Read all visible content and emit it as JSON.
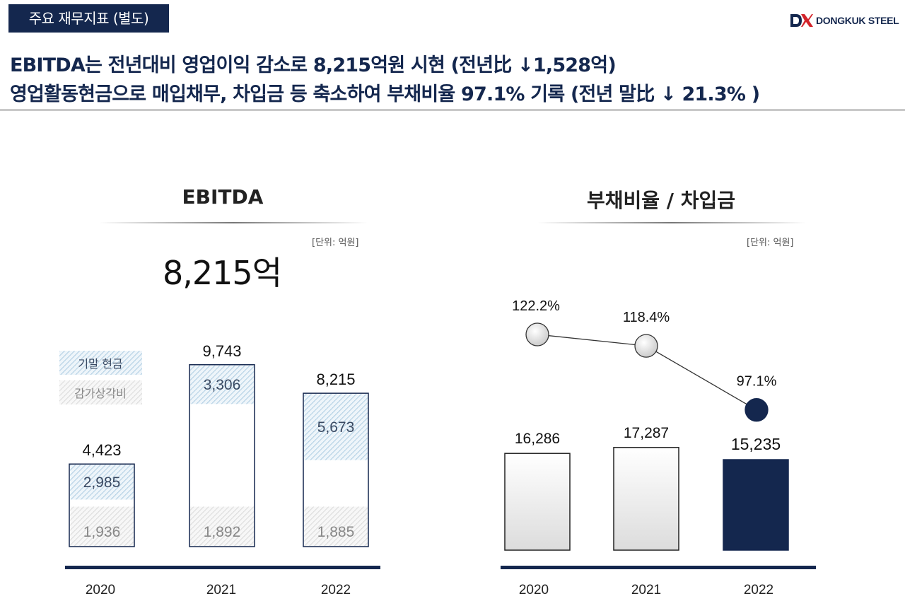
{
  "header": {
    "tag": "주요 재무지표 (별도)",
    "logo_text": "DONGKUK STEEL",
    "headline_1": "EBITDA는 전년대비 영업이익 감소로 8,215억원 시현 (전년比 ↓1,528억)",
    "headline_2": "영업활동현금으로 매입채무, 차입금 등 축소하여  부채비율 97.1% 기록 (전년 말比 ↓ 21.3% )"
  },
  "colors": {
    "navy": "#14274e",
    "cash_hatch": "#9ec3dc",
    "depreciation_hatch": "#c8c8c8"
  },
  "left": {
    "title": "EBITDA",
    "unit": "[단위: 억원]",
    "big_value": "8,215억"
  },
  "right": {
    "title": "부채비율 / 차입금",
    "unit": "[단위: 억원]"
  },
  "chart_data": [
    {
      "type": "bar",
      "title": "EBITDA",
      "categories": [
        "2020",
        "2021",
        "2022"
      ],
      "totals": [
        4423,
        9743,
        8215
      ],
      "total_labels": [
        "4,423",
        "9,743",
        "8,215"
      ],
      "series": [
        {
          "name": "기말 현금",
          "values": [
            2985,
            3306,
            5673
          ],
          "labels": [
            "2,985",
            "3,306",
            "5,673"
          ]
        },
        {
          "name": "감가상각비",
          "values": [
            1936,
            1892,
            1885
          ],
          "labels": [
            "1,936",
            "1,892",
            "1,885"
          ]
        }
      ],
      "legend": "left"
    },
    {
      "type": "bar",
      "title": "부채비율 / 차입금",
      "categories": [
        "2020",
        "2021",
        "2022"
      ],
      "bars": [
        16286,
        17287,
        15235
      ],
      "bar_labels": [
        "16,286",
        "17,287",
        "15,235"
      ],
      "line": [
        122.2,
        118.4,
        97.1
      ],
      "line_labels": [
        "122.2%",
        "118.4%",
        "97.1%"
      ]
    }
  ]
}
